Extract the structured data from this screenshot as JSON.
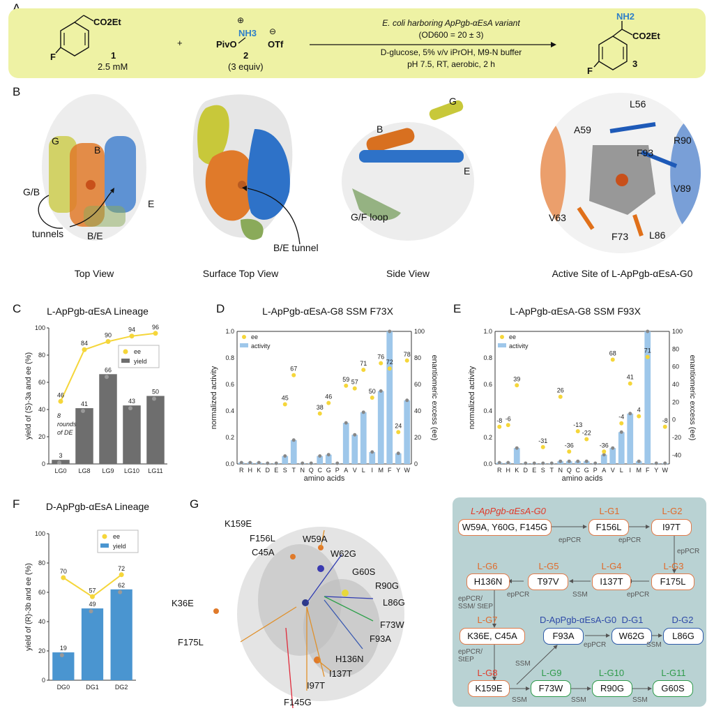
{
  "panelA": {
    "label": "A",
    "reactant1": {
      "ester": "CO2Et",
      "substituent": "F",
      "number": "1",
      "conc": "2.5 mM"
    },
    "plus": "+",
    "reactant2": {
      "piv": "PivO",
      "nh3": "NH3",
      "plus_charge": "⊕",
      "minus_charge": "⊖",
      "otf": "OTf",
      "number": "2",
      "equiv": "(3 equiv)"
    },
    "conditions": [
      "E. coli harboring ApPgb-αEsA variant",
      "(OD600 = 20 ± 3)",
      "D-glucose, 5% v/v iPrOH, M9-N buffer",
      "pH 7.5, RT, aerobic, 2 h"
    ],
    "product": {
      "nh2": "NH2",
      "ester": "CO2Et",
      "substituent": "F",
      "number": "3"
    }
  },
  "panelB": {
    "label": "B",
    "views": [
      {
        "caption": "Top View",
        "labels": [
          "G",
          "B",
          "G/B",
          "tunnels",
          "B/E",
          "E"
        ]
      },
      {
        "caption": "Surface Top View",
        "labels": [
          "B/E tunnel"
        ]
      },
      {
        "caption": "Side View",
        "labels": [
          "G",
          "B",
          "E",
          "G/F loop"
        ]
      },
      {
        "caption": "Active Site of L-ApPgb-αEsA-G0",
        "labels": [
          "L56",
          "A59",
          "R90",
          "F93",
          "V89",
          "V63",
          "F73",
          "L86"
        ]
      }
    ]
  },
  "panelC": {
    "label": "C",
    "title": "L-ApPgb-αEsA Lineage",
    "chart_data": {
      "type": "bar",
      "categories": [
        "LG0",
        "LG8",
        "LG9",
        "LG10",
        "LG11"
      ],
      "series": [
        {
          "name": "yield",
          "values": [
            3,
            41,
            66,
            43,
            50
          ]
        },
        {
          "name": "ee",
          "values": [
            46,
            84,
            90,
            94,
            96
          ]
        }
      ],
      "ylabel": "yield of (S)-3a and ee (%)",
      "ylim": [
        0,
        100
      ],
      "yticks": [
        0,
        20,
        40,
        60,
        80,
        100
      ],
      "legend": [
        "ee",
        "yield"
      ],
      "legend_position": "right",
      "annotation": [
        "8",
        "rounds",
        "of DE"
      ],
      "colors": {
        "yield": "#6e6e6e",
        "ee": "#f5d63a"
      }
    }
  },
  "panelD": {
    "label": "D",
    "title": "L-ApPgb-αEsA-G8 SSM F73X",
    "chart_data": {
      "type": "bar",
      "categories": [
        "R",
        "H",
        "K",
        "D",
        "E",
        "S",
        "T",
        "N",
        "Q",
        "C",
        "G",
        "P",
        "A",
        "V",
        "L",
        "I",
        "M",
        "F",
        "Y",
        "W"
      ],
      "series": [
        {
          "name": "activity",
          "values": [
            0.01,
            0.01,
            0.01,
            0.005,
            0.005,
            0.06,
            0.18,
            0.005,
            0.005,
            0.06,
            0.07,
            0.005,
            0.31,
            0.22,
            0.39,
            0.09,
            0.55,
            1.0,
            0.08,
            0.48
          ]
        },
        {
          "name": "ee",
          "values": [
            null,
            null,
            null,
            null,
            null,
            45,
            67,
            null,
            null,
            38,
            46,
            null,
            59,
            57,
            71,
            50,
            76,
            72,
            24,
            78
          ]
        }
      ],
      "ylabel": "normalized activity",
      "y2label": "enantiomeric excess (ee)",
      "xlabel": "amino acids",
      "ylim": [
        0,
        1.0
      ],
      "y2lim": [
        0,
        100
      ],
      "yticks": [
        0,
        0.2,
        0.4,
        0.6,
        0.8,
        1.0
      ],
      "y2ticks": [
        0,
        20,
        40,
        60,
        80,
        100
      ],
      "legend": [
        "ee",
        "activity"
      ],
      "legend_position": "top-left",
      "colors": {
        "activity": "#9ec7ea",
        "ee": "#f5d63a"
      }
    }
  },
  "panelE": {
    "label": "E",
    "title": "L-ApPgb-αEsA-G8 SSM F93X",
    "chart_data": {
      "type": "bar",
      "categories": [
        "R",
        "H",
        "K",
        "D",
        "E",
        "S",
        "T",
        "N",
        "Q",
        "C",
        "G",
        "P",
        "A",
        "V",
        "L",
        "I",
        "M",
        "F",
        "Y",
        "W"
      ],
      "series": [
        {
          "name": "activity",
          "values": [
            0.01,
            0.01,
            0.12,
            0.005,
            0.005,
            0.005,
            0.005,
            0.02,
            0.02,
            0.02,
            0.02,
            0.005,
            0.07,
            0.12,
            0.24,
            0.38,
            0.02,
            1.0,
            0.005,
            0.005
          ]
        },
        {
          "name": "ee",
          "values": [
            -8,
            -6,
            39,
            null,
            null,
            -31,
            null,
            26,
            -36,
            -13,
            -22,
            null,
            -36,
            68,
            -4,
            41,
            4,
            71,
            null,
            -8
          ]
        }
      ],
      "ylabel": "normalized activity",
      "y2label": "enantiomeric excess (ee)",
      "xlabel": "amino acids",
      "ylim": [
        0,
        1.0
      ],
      "y2lim": [
        -50,
        100
      ],
      "yticks": [
        0,
        0.2,
        0.4,
        0.6,
        0.8,
        1.0
      ],
      "y2ticks": [
        -40,
        -20,
        0,
        20,
        40,
        60,
        80,
        100
      ],
      "legend": [
        "ee",
        "activity"
      ],
      "legend_position": "top-left",
      "colors": {
        "activity": "#9ec7ea",
        "ee": "#f5d63a"
      }
    }
  },
  "panelF": {
    "label": "F",
    "title": "D-ApPgb-αEsA Lineage",
    "chart_data": {
      "type": "bar",
      "categories": [
        "DG0",
        "DG1",
        "DG2"
      ],
      "series": [
        {
          "name": "yield",
          "values": [
            19,
            49,
            62
          ]
        },
        {
          "name": "ee",
          "values": [
            70,
            57,
            72
          ]
        }
      ],
      "ylabel": "yield of (R)-3b and ee (%)",
      "ylim": [
        0,
        100
      ],
      "yticks": [
        0,
        20,
        40,
        60,
        80,
        100
      ],
      "legend": [
        "ee",
        "yield"
      ],
      "legend_position": "top-right",
      "colors": {
        "yield": "#4a95d0",
        "ee": "#f5d63a"
      }
    }
  },
  "panelG": {
    "label": "G",
    "mutations": [
      "K159E",
      "F156L",
      "C45A",
      "W59A",
      "W62G",
      "G60S",
      "R90G",
      "L86G",
      "K36E",
      "F175L",
      "F73W",
      "F93A",
      "H136N",
      "I137T",
      "I97T",
      "F145G"
    ],
    "flow": {
      "row1": {
        "g0_label": "L-ApPgb-αEsA-G0",
        "g0": "W59A, Y60G, F145G",
        "g1_label": "L-G1",
        "g1": "F156L",
        "g2_label": "L-G2",
        "g2": "I97T"
      },
      "row2": {
        "g6_label": "L-G6",
        "g6": "H136N",
        "g5_label": "L-G5",
        "g5": "T97V",
        "g4_label": "L-G4",
        "g4": "I137T",
        "g3_label": "L-G3",
        "g3": "F175L"
      },
      "row3": {
        "g7_label": "L-G7",
        "g7": "K36E, C45A",
        "dg0_label": "D-ApPgb-αEsA-G0",
        "dg0": "F93A",
        "dg1_label": "D-G1",
        "dg1": "W62G",
        "dg2_label": "D-G2",
        "dg2": "L86G"
      },
      "row4": {
        "g8_label": "L-G8",
        "g8": "K159E",
        "g9_label": "L-G9",
        "g9": "F73W",
        "g10_label": "L-G10",
        "g10": "R90G",
        "g11_label": "L-G11",
        "g11": "G60S"
      },
      "ops": {
        "epPCR": "epPCR",
        "SSM": "SSM",
        "mix1": "epPCR/ SSM/ StEP",
        "mix2": "epPCR/ StEP"
      }
    }
  }
}
